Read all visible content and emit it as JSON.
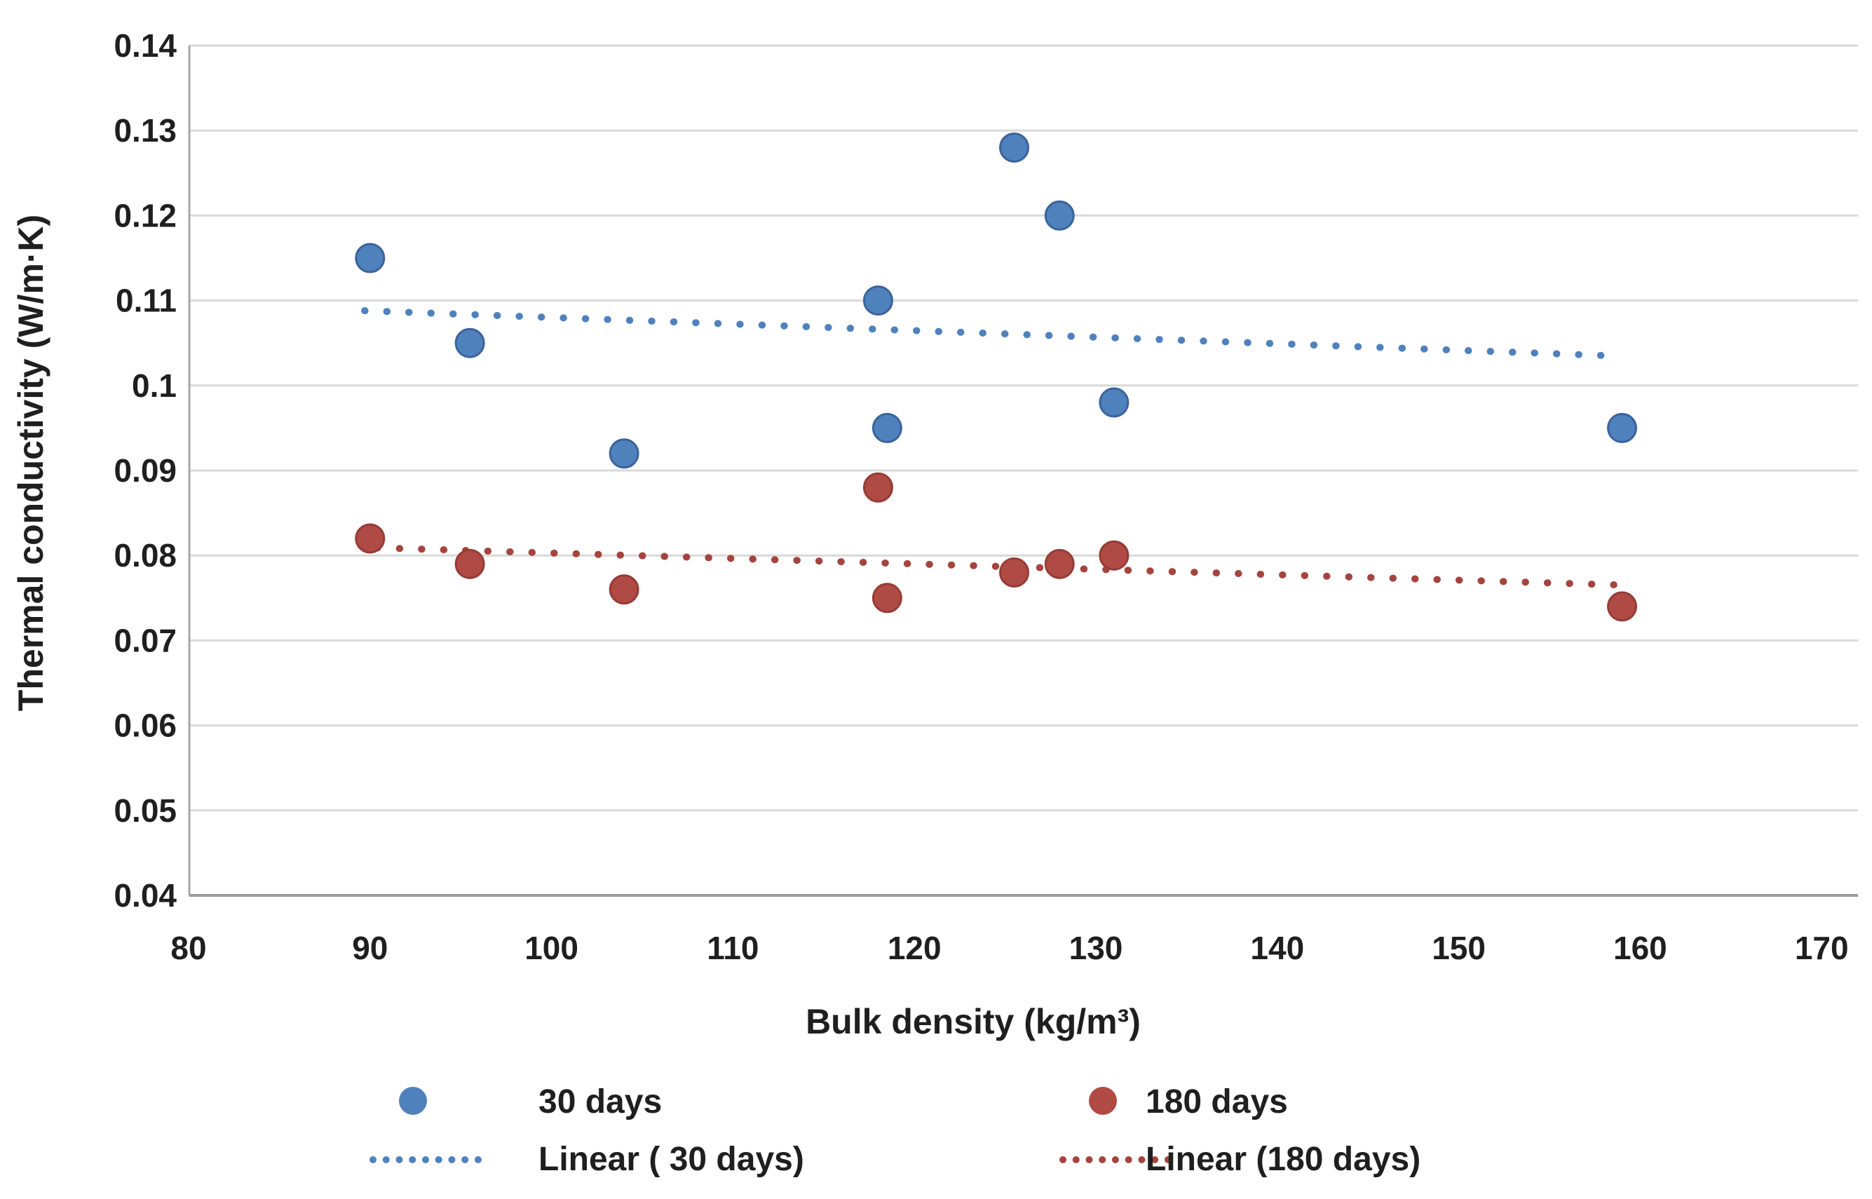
{
  "chart_data": {
    "type": "scatter",
    "title": "",
    "xlabel": "Bulk density (kg/m³)",
    "ylabel": "Thermal conductivity (W/m·K)",
    "xlim": [
      80,
      170
    ],
    "ylim": [
      0.04,
      0.14
    ],
    "grid": "horizontal",
    "x_tick_labels": [
      "80",
      "90",
      "100",
      "110",
      "120",
      "130",
      "140",
      "150",
      "160",
      "170"
    ],
    "x_tick_values": [
      80,
      90,
      100,
      110,
      120,
      130,
      140,
      150,
      160,
      170
    ],
    "y_tick_labels": [
      "0.14",
      "0.13",
      "0.12",
      "0.11",
      "0.1",
      "0.09",
      "0.08",
      "0.07",
      "0.06",
      "0.05",
      "0.04"
    ],
    "y_tick_values": [
      0.14,
      0.13,
      0.12,
      0.11,
      0.1,
      0.09,
      0.08,
      0.07,
      0.06,
      0.05,
      0.04
    ],
    "series": [
      {
        "name": "30 days",
        "color": "#4F81BD",
        "edge_color": "#3A6399",
        "points": [
          [
            90,
            0.115
          ],
          [
            95.5,
            0.105
          ],
          [
            104,
            0.092
          ],
          [
            118,
            0.11
          ],
          [
            118.5,
            0.095
          ],
          [
            125.5,
            0.128
          ],
          [
            128,
            0.12
          ],
          [
            131,
            0.098
          ],
          [
            159,
            0.095
          ]
        ]
      },
      {
        "name": "180 days",
        "color": "#B04A44",
        "edge_color": "#953C37",
        "points": [
          [
            90,
            0.082
          ],
          [
            95.5,
            0.079
          ],
          [
            104,
            0.076
          ],
          [
            118,
            0.088
          ],
          [
            118.5,
            0.075
          ],
          [
            125.5,
            0.078
          ],
          [
            128,
            0.079
          ],
          [
            131,
            0.08
          ],
          [
            159,
            0.074
          ]
        ]
      }
    ],
    "trendlines": [
      {
        "name": "Linear ( 30 days)",
        "color": "#4F81BD",
        "style": "dotted",
        "start": [
          89.7,
          0.1088
        ],
        "end": [
          158.4,
          0.1035
        ]
      },
      {
        "name": "Linear (180 days)",
        "color": "#A5443E",
        "style": "dotted",
        "start": [
          90.4,
          0.0809
        ],
        "end": [
          159.3,
          0.0765
        ]
      }
    ],
    "legend_position": "bottom"
  },
  "colors": {
    "background": "#ffffff",
    "gridline": "#D9D9D9",
    "axis_line": "#A6A6A6",
    "text": "#1f1f1f"
  }
}
